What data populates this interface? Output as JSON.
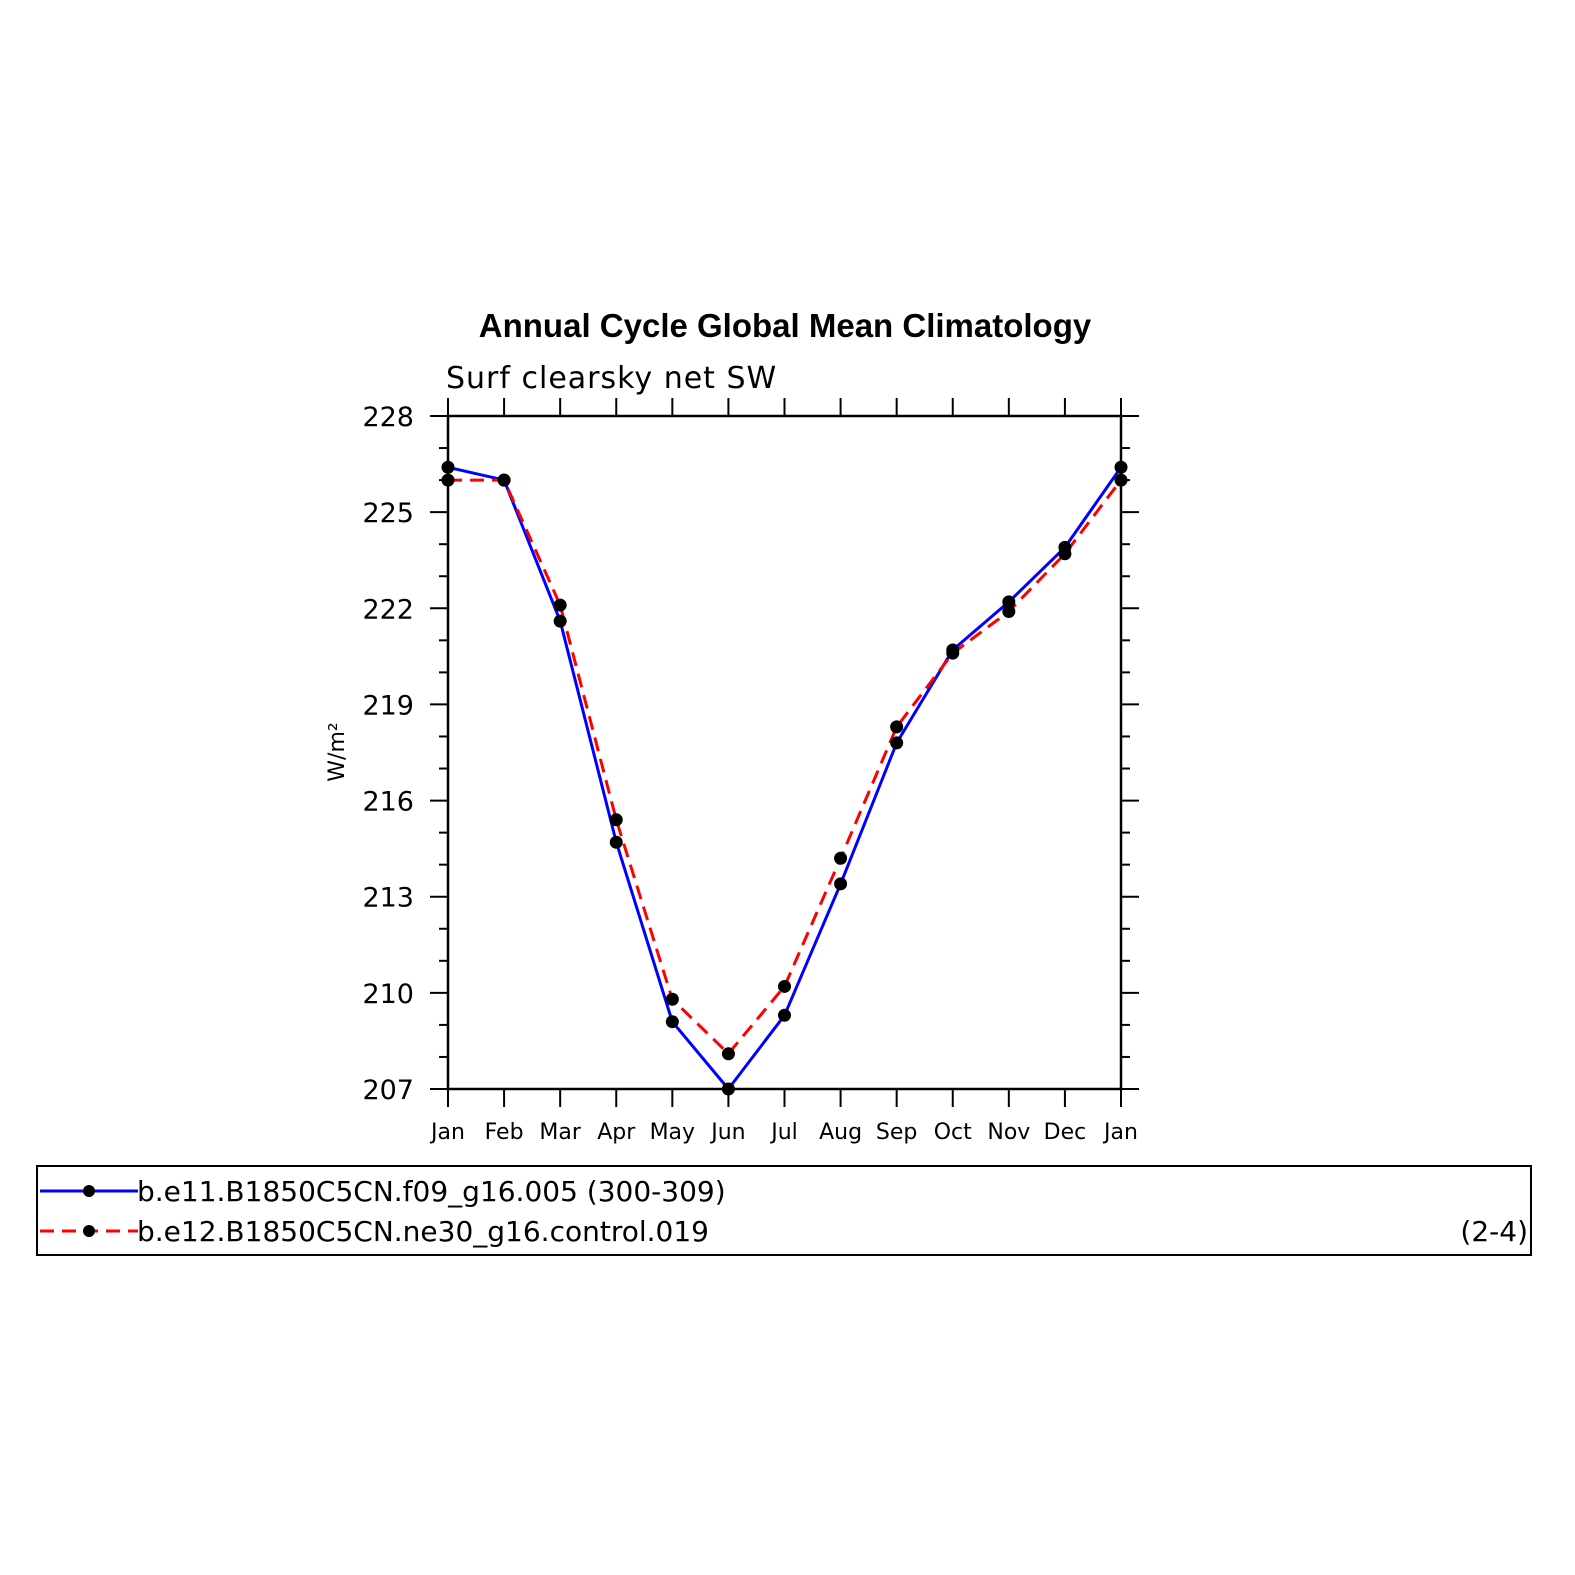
{
  "chart_data": {
    "type": "line",
    "title": "Annual Cycle Global Mean Climatology",
    "subtitle": "Surf clearsky net SW",
    "ylabel": "W/m²",
    "xlabel": "",
    "categories": [
      "Jan",
      "Feb",
      "Mar",
      "Apr",
      "May",
      "Jun",
      "Jul",
      "Aug",
      "Sep",
      "Oct",
      "Nov",
      "Dec",
      "Jan"
    ],
    "ylim": [
      207,
      228
    ],
    "yticks": [
      "207",
      "210",
      "213",
      "216",
      "219",
      "222",
      "225",
      "228"
    ],
    "series": [
      {
        "name": "b.e11.B1850C5CN.f09_g16.005 (300-309)",
        "color": "#0000ff",
        "dash": "solid",
        "values": [
          226.4,
          226.0,
          221.6,
          214.7,
          209.1,
          207.0,
          209.3,
          213.4,
          217.8,
          220.7,
          222.2,
          223.9,
          226.4
        ]
      },
      {
        "name": "b.e12.B1850C5CN.ne30_g16.control.019",
        "color": "#ff0000",
        "dash": "dashed",
        "values": [
          226.0,
          226.0,
          222.1,
          215.4,
          209.8,
          208.1,
          210.2,
          214.2,
          218.3,
          220.6,
          221.9,
          223.7,
          226.0
        ]
      }
    ],
    "legend": {
      "entries": [
        "b.e11.B1850C5CN.f09_g16.005 (300-309)",
        "b.e12.B1850C5CN.ne30_g16.control.019"
      ],
      "note": "(2-4)"
    },
    "marker": "filled-circle",
    "grid": false
  }
}
